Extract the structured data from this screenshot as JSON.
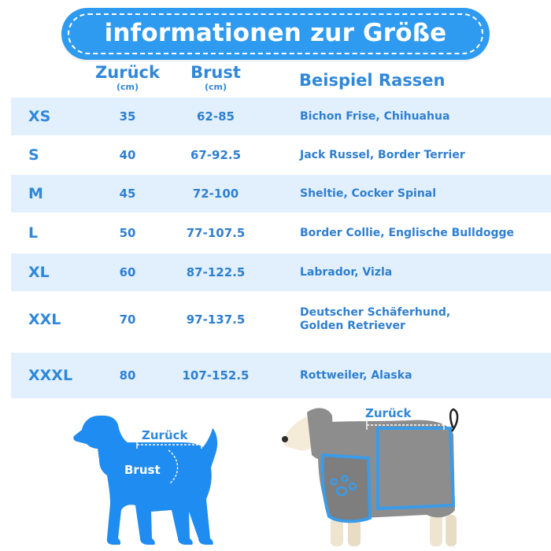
{
  "title": "informationen zur Größe",
  "headers": {
    "back": "Zurück",
    "back_unit": "(cm)",
    "chest": "Brust",
    "chest_unit": "(cm)",
    "breeds": "Beispiel Rassen"
  },
  "rows": [
    {
      "size": "XS",
      "back": "35",
      "chest": "62-85",
      "breeds": "Bichon Frise, Chihuahua"
    },
    {
      "size": "S",
      "back": "40",
      "chest": "67-92.5",
      "breeds": "Jack Russel, Border Terrier"
    },
    {
      "size": "M",
      "back": "45",
      "chest": "72-100",
      "breeds": "Sheltie, Cocker Spinal"
    },
    {
      "size": "L",
      "back": "50",
      "chest": "77-107.5",
      "breeds": "Border Collie, Englische Bulldogge"
    },
    {
      "size": "XL",
      "back": "60",
      "chest": "87-122.5",
      "breeds": "Labrador, Vizla"
    },
    {
      "size": "XXL",
      "back": "70",
      "chest": "97-137.5",
      "breeds_line1": "Deutscher Schäferhund,",
      "breeds_line2": "Golden Retriever"
    },
    {
      "size": "XXXL",
      "back": "80",
      "chest": "107-152.5",
      "breeds": "Rottweiler, Alaska"
    }
  ],
  "diagram_left": {
    "back_label": "Zurück",
    "chest_label": "Brust"
  },
  "diagram_right": {
    "back_label": "Zurück"
  },
  "colors": {
    "accent": "#2e9bf0",
    "text_blue": "#2f7fd0",
    "row_shade": "#e2f0fd",
    "dog_silhouette": "#1e8cf0",
    "coat_grey": "#8d8d8d",
    "coat_trim": "#3a9be8"
  }
}
